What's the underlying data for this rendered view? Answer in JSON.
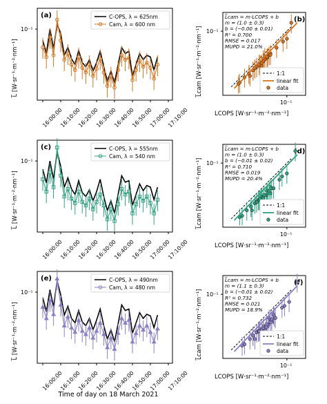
{
  "figure": {
    "xlabel_bottom": "Time of day on 18 March 2021",
    "time_ticks": [
      "16:00:00",
      "16:10:00",
      "16:20:00",
      "16:30:00",
      "16:40:00",
      "16:50:00",
      "17:00:00",
      "17:10:00"
    ],
    "y_tick_label": "10⁻¹",
    "x_tick_label_scatter": "10⁻¹",
    "ylabel_ts": "L̅ [W·sr⁻¹·m⁻²·nm⁻¹]",
    "ylabel_sc": "L̅cam [W·sr⁻¹·m⁻²·nm⁻¹]",
    "xlabel_sc": "LCOPS [W·sr⁻¹·m⁻²·nm⁻¹]",
    "scatter_legend": [
      "1:1",
      "linear fit",
      "data"
    ]
  },
  "colors": {
    "orange": "#d6731c",
    "green": "#2ea07c",
    "purple": "#8a7fc4",
    "black": "#000000"
  },
  "chart_data": [
    {
      "type": "line",
      "panel": "(a)",
      "band": "625/600",
      "legend": [
        "C-OPS, λ = 625nm",
        "Cam, λ = 600 nm"
      ],
      "x_minutes": [
        0,
        2,
        4,
        6,
        8,
        10,
        12,
        14,
        16,
        18,
        20,
        22,
        24,
        26,
        28,
        30,
        32,
        34,
        36,
        38,
        40,
        42,
        44,
        46,
        48,
        50,
        52,
        54,
        56,
        58,
        60,
        62,
        64
      ],
      "series": [
        {
          "name": "C-OPS, λ = 625nm",
          "values": [
            0.08,
            0.062,
            0.1,
            0.068,
            0.11,
            0.092,
            0.06,
            0.07,
            0.056,
            0.05,
            0.066,
            0.052,
            0.048,
            0.055,
            0.044,
            0.052,
            0.065,
            0.048,
            0.036,
            0.044,
            0.035,
            0.05,
            0.07,
            0.062,
            0.065,
            0.04,
            0.05,
            0.062,
            0.055,
            0.06,
            0.058,
            0.045,
            0.058
          ]
        },
        {
          "name": "Cam, λ = 600 nm",
          "values": [
            0.07,
            0.058,
            0.085,
            0.06,
            0.12,
            0.08,
            0.055,
            0.062,
            0.05,
            0.045,
            0.058,
            0.047,
            0.043,
            0.05,
            0.04,
            0.046,
            0.056,
            0.043,
            0.033,
            0.04,
            0.032,
            0.045,
            0.06,
            0.055,
            0.057,
            0.037,
            0.045,
            0.054,
            0.048,
            0.052,
            0.047,
            0.038,
            0.05
          ],
          "err": 0.012
        }
      ],
      "ylim": [
        0.025,
        0.15
      ],
      "scatter": {
        "annotation": [
          "L̅cam = m·LCOPS + b",
          "m = (1.0 ± 0.3)",
          "b = (−0.00 ± 0.01)",
          "R² = 0.700",
          "RMSE = 0.017",
          "MUPD = 21.0%"
        ],
        "panel": "(b)"
      }
    },
    {
      "type": "line",
      "panel": "(c)",
      "band": "555/540",
      "legend": [
        "C-OPS, λ = 555nm",
        "Cam, λ = 540 nm"
      ],
      "x_minutes": [
        0,
        2,
        4,
        6,
        8,
        10,
        12,
        14,
        16,
        18,
        20,
        22,
        24,
        26,
        28,
        30,
        32,
        34,
        36,
        38,
        40,
        42,
        44,
        46,
        48,
        50,
        52,
        54,
        56,
        58,
        60,
        62,
        64
      ],
      "series": [
        {
          "name": "C-OPS, λ = 555nm",
          "values": [
            0.085,
            0.065,
            0.1,
            0.07,
            0.12,
            0.09,
            0.06,
            0.072,
            0.058,
            0.052,
            0.068,
            0.054,
            0.05,
            0.057,
            0.046,
            0.055,
            0.07,
            0.05,
            0.038,
            0.046,
            0.036,
            0.052,
            0.075,
            0.066,
            0.068,
            0.042,
            0.052,
            0.064,
            0.056,
            0.062,
            0.06,
            0.047,
            0.06
          ]
        },
        {
          "name": "Cam, λ = 540 nm",
          "values": [
            0.07,
            0.055,
            0.08,
            0.06,
            0.13,
            0.075,
            0.05,
            0.058,
            0.048,
            0.044,
            0.055,
            0.045,
            0.042,
            0.048,
            0.039,
            0.045,
            0.052,
            0.042,
            0.032,
            0.039,
            0.031,
            0.043,
            0.058,
            0.052,
            0.055,
            0.036,
            0.043,
            0.05,
            0.046,
            0.05,
            0.044,
            0.036,
            0.047
          ],
          "err": 0.012
        }
      ],
      "ylim": [
        0.025,
        0.15
      ],
      "scatter": {
        "annotation": [
          "L̅cam = m·LCOPS + b",
          "m = (1.0 ± 0.3)",
          "b = (−0.01 ± 0.02)",
          "R² = 0.710",
          "RMSE = 0.019",
          "MUPD = 20.4%"
        ],
        "panel": "(d)"
      }
    },
    {
      "type": "line",
      "panel": "(e)",
      "band": "490/480",
      "legend": [
        "C-OPS, λ = 490nm",
        "Cam, λ = 480 nm"
      ],
      "x_minutes": [
        0,
        2,
        4,
        6,
        8,
        10,
        12,
        14,
        16,
        18,
        20,
        22,
        24,
        26,
        28,
        30,
        32,
        34,
        36,
        38,
        40,
        42,
        44,
        46,
        48,
        50,
        52,
        54,
        56,
        58,
        60,
        62,
        64
      ],
      "series": [
        {
          "name": "C-OPS, λ = 490nm",
          "values": [
            0.09,
            0.068,
            0.105,
            0.075,
            0.125,
            0.095,
            0.064,
            0.076,
            0.06,
            0.055,
            0.07,
            0.056,
            0.052,
            0.06,
            0.048,
            0.058,
            0.072,
            0.052,
            0.04,
            0.048,
            0.038,
            0.054,
            0.078,
            0.07,
            0.072,
            0.045,
            0.055,
            0.067,
            0.06,
            0.065,
            0.063,
            0.05,
            0.064
          ]
        },
        {
          "name": "Cam, λ = 480 nm",
          "values": [
            0.075,
            0.06,
            0.085,
            0.065,
            0.13,
            0.078,
            0.052,
            0.062,
            0.05,
            0.046,
            0.058,
            0.047,
            0.044,
            0.05,
            0.041,
            0.047,
            0.055,
            0.044,
            0.034,
            0.041,
            0.033,
            0.045,
            0.06,
            0.055,
            0.058,
            0.038,
            0.045,
            0.052,
            0.048,
            0.052,
            0.046,
            0.038,
            0.049
          ],
          "err": 0.012
        }
      ],
      "ylim": [
        0.025,
        0.15
      ],
      "scatter": {
        "annotation": [
          "L̅cam = m·LCOPS + b",
          "m = (1.1 ± 0.3)",
          "b = (−0.01 ± 0.02)",
          "R² = 0.732",
          "RMSE = 0.021",
          "MUPD = 18.9%"
        ],
        "panel": "(f)"
      }
    }
  ]
}
